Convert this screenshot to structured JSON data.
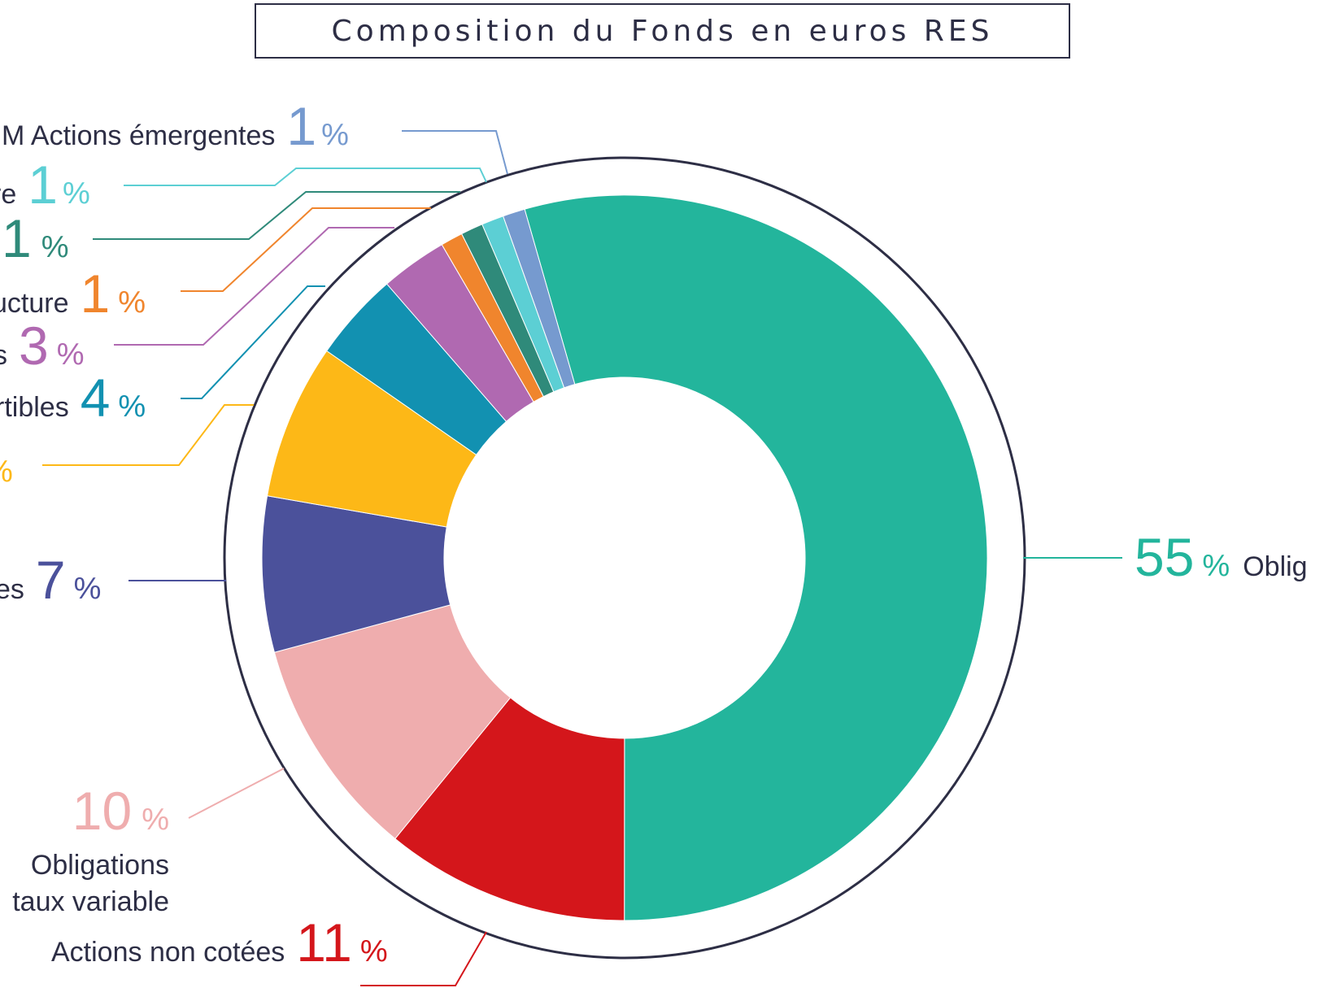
{
  "chart_data": {
    "type": "pie",
    "title": "Composition du Fonds en euros RES",
    "slices": [
      {
        "key": "obligations",
        "label": "Oblig",
        "display": "55",
        "unit": "%",
        "value": 55,
        "color": "#23b59c"
      },
      {
        "key": "actions_non_cotees",
        "label": "Actions non cotées",
        "display": "11",
        "unit": "%",
        "value": 11,
        "color": "#d4161b"
      },
      {
        "key": "obligations_taux_variable",
        "label": [
          "Obligations",
          "taux variable"
        ],
        "display": "10",
        "unit": "%",
        "value": 10,
        "color": "#efadae"
      },
      {
        "key": "slice_7",
        "label": "es",
        "display": "7",
        "unit": "%",
        "value": 7,
        "color": "#4b519b"
      },
      {
        "key": "slice_yellow",
        "label": "",
        "display": "",
        "unit": "%",
        "value": 7,
        "color": "#fdb817"
      },
      {
        "key": "slice_convertibles",
        "label": "rtibles",
        "display": "4",
        "unit": "%",
        "value": 4,
        "color": "#1291b1"
      },
      {
        "key": "slice_3",
        "label": "s",
        "display": "3",
        "unit": "%",
        "value": 3,
        "color": "#b069b1"
      },
      {
        "key": "slice_infra",
        "label": "ucture",
        "display": "1",
        "unit": "%",
        "value": 1,
        "color": "#f0852d"
      },
      {
        "key": "slice_dark_green",
        "label": "",
        "display": "1",
        "unit": "%",
        "value": 1,
        "color": "#2f8a7a"
      },
      {
        "key": "slice_cyan",
        "label": "re",
        "display": "1",
        "unit": "%",
        "value": 1,
        "color": "#5ccfd4"
      },
      {
        "key": "slice_em_actions",
        "label": "M Actions émergentes",
        "display": "1",
        "unit": "%",
        "value": 1,
        "color": "#769acf"
      }
    ]
  },
  "colors": {
    "text": "#2d2e45",
    "ring": "#2d2e45",
    "background": "#ffffff"
  }
}
